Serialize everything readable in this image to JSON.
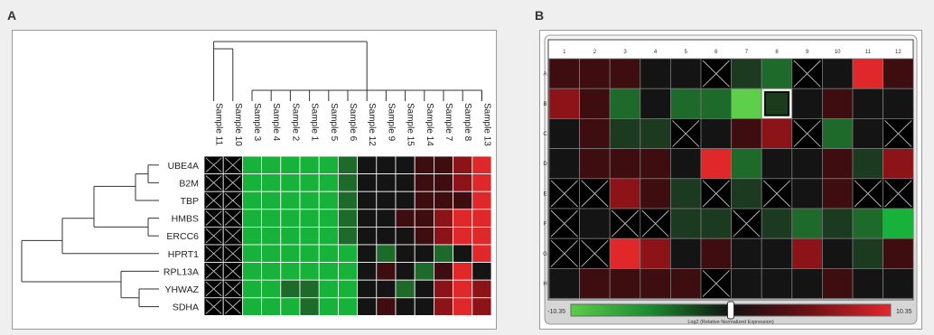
{
  "panel_a": {
    "letter": "A",
    "samples": [
      "Sample 11",
      "Sample 10",
      "Sample 3",
      "Sample 4",
      "Sample 2",
      "Sample 1",
      "Sample 5",
      "Sample 6",
      "Sample 12",
      "Sample 9",
      "Sample 15",
      "Sample 14",
      "Sample 7",
      "Sample 8",
      "Sample 13"
    ],
    "genes": [
      "UBE4A",
      "B2M",
      "TBP",
      "HMBS",
      "ERCC6",
      "HPRT1",
      "RPL13A",
      "YHWAZ",
      "SDHA"
    ],
    "cells": [
      [
        "X",
        "X",
        "G2",
        "G2",
        "G2",
        "G2",
        "G2",
        "G1",
        "K",
        "K",
        "K",
        "R1",
        "R1",
        "R2",
        "R3"
      ],
      [
        "X",
        "X",
        "G2",
        "G2",
        "G2",
        "G2",
        "G2",
        "G1",
        "K",
        "K",
        "K",
        "R1",
        "R1",
        "R2",
        "R3"
      ],
      [
        "X",
        "X",
        "G2",
        "G2",
        "G2",
        "G2",
        "G2",
        "G1",
        "K",
        "K",
        "K",
        "R1",
        "R1",
        "R1",
        "R3"
      ],
      [
        "X",
        "X",
        "G2",
        "G2",
        "G2",
        "G2",
        "G2",
        "G1",
        "K",
        "K",
        "R1",
        "R1",
        "R2",
        "R3",
        "R3"
      ],
      [
        "X",
        "X",
        "G2",
        "G2",
        "G2",
        "G2",
        "G2",
        "G1",
        "K",
        "K",
        "K",
        "R1",
        "R2",
        "R3",
        "R3"
      ],
      [
        "X",
        "X",
        "G2",
        "G2",
        "G2",
        "G2",
        "G2",
        "G2",
        "K",
        "G1",
        "K",
        "K",
        "G1",
        "K",
        "R3"
      ],
      [
        "X",
        "X",
        "G2",
        "G2",
        "G2",
        "G2",
        "G2",
        "G2",
        "K",
        "R1",
        "K",
        "G1",
        "R1",
        "R3",
        "K"
      ],
      [
        "X",
        "X",
        "G2",
        "G2",
        "G1",
        "G1",
        "G2",
        "G2",
        "K",
        "K",
        "G1",
        "K",
        "R2",
        "R3",
        "R2"
      ],
      [
        "X",
        "X",
        "G2",
        "G2",
        "G2",
        "G1",
        "G2",
        "G2",
        "K",
        "R1",
        "K",
        "K",
        "R2",
        "R3",
        "R2"
      ]
    ]
  },
  "panel_b": {
    "letter": "B",
    "columns": [
      "1",
      "2",
      "3",
      "4",
      "5",
      "6",
      "7",
      "8",
      "9",
      "10",
      "11",
      "12"
    ],
    "rows": [
      "A",
      "B",
      "C",
      "D",
      "E",
      "F",
      "G",
      "H"
    ],
    "cells": [
      [
        "R1",
        "R1",
        "R1",
        "K",
        "K",
        "X",
        "G0",
        "G1",
        "X",
        "K",
        "R3",
        "R1"
      ],
      [
        "R2",
        "R1",
        "G1",
        "K",
        "G1",
        "G1",
        "G3",
        "S",
        "K",
        "R1",
        "K",
        "K"
      ],
      [
        "K",
        "R1",
        "G0",
        "G0",
        "X",
        "K",
        "R1",
        "R2",
        "X",
        "G1",
        "K",
        "X"
      ],
      [
        "K",
        "R1",
        "R1",
        "R1",
        "K",
        "R3",
        "G1",
        "K",
        "K",
        "R1",
        "G0",
        "R2"
      ],
      [
        "X",
        "X",
        "R2",
        "R1",
        "G0",
        "X",
        "G0",
        "X",
        "K",
        "R1",
        "X",
        "X"
      ],
      [
        "X",
        "K",
        "X",
        "X",
        "G0",
        "G0",
        "X",
        "G0",
        "G1",
        "G0",
        "G1",
        "G2"
      ],
      [
        "X",
        "X",
        "R3",
        "R2",
        "K",
        "R1",
        "K",
        "K",
        "R2",
        "K",
        "G0",
        "R1"
      ],
      [
        "K",
        "R1",
        "R1",
        "R1",
        "R1",
        "X",
        "K",
        "K",
        "K",
        "R1",
        "K",
        "K"
      ]
    ],
    "scale_min": "-10.35",
    "scale_max": "10.35",
    "scale_label": "Log2 (Relative Normalized Expression)",
    "slider_level": 0.5
  },
  "colors": {
    "G3": "#5dcf4b",
    "G2": "#17b23a",
    "G1": "#1d6a2b",
    "G0": "#1c3a20",
    "K": "#141414",
    "R1": "#3d0d10",
    "R2": "#8c1418",
    "R3": "#e0282b",
    "X": "#000000",
    "S": "#1a3c1c"
  }
}
